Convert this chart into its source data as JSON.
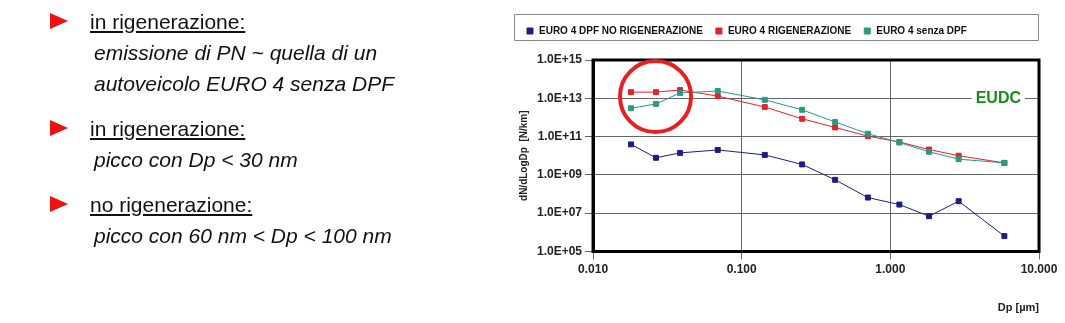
{
  "chart_data": {
    "type": "line",
    "xlabel": "Dp [µm]",
    "ylabel": "dN/dLogDp  [N/km]",
    "x": [
      0.018,
      0.0265,
      0.0385,
      0.069,
      0.143,
      0.255,
      0.425,
      0.706,
      1.15,
      1.82,
      2.88,
      5.85
    ],
    "series": [
      {
        "name": "EURO 4 DPF NO RIGENERAZIONE",
        "color": "#1c1c84",
        "values": [
          39000000000.0,
          7800000000.0,
          14000000000.0,
          20000000000.0,
          11000000000.0,
          3500000000.0,
          550000000.0,
          65000000.0,
          28000000.0,
          6900000.0,
          42000000.0,
          630000.0
        ]
      },
      {
        "name": "EURO 4 RIGENERAZIONE",
        "color": "#e8202a",
        "values": [
          21000000000000.0,
          21000000000000.0,
          27000000000000.0,
          13000000000000.0,
          3500000000000.0,
          850000000000.0,
          300000000000.0,
          105000000000.0,
          52000000000.0,
          21000000000.0,
          10000000000.0,
          4200000000.0
        ]
      },
      {
        "name": "EURO 4 senza DPF",
        "color": "#2a9a80",
        "values": [
          3000000000000.0,
          5100000000000.0,
          19000000000000.0,
          24000000000000.0,
          8300000000000.0,
          2500000000000.0,
          580000000000.0,
          140000000000.0,
          49000000000.0,
          16000000000.0,
          6600000000.0,
          4200000000.0
        ]
      }
    ],
    "xlim": [
      0.01,
      10
    ],
    "xticks": [
      {
        "value": 0.01,
        "label": "0.010"
      },
      {
        "value": 0.1,
        "label": "0.100"
      },
      {
        "value": 1,
        "label": "1.000"
      },
      {
        "value": 10,
        "label": "10.000"
      }
    ],
    "ylim": [
      100000.0,
      1000000000000000.0
    ],
    "yticks": [
      {
        "value": 100000.0,
        "label": "1.0E+05"
      },
      {
        "value": 10000000.0,
        "label": "1.0E+07"
      },
      {
        "value": 1000000000.0,
        "label": "1.0E+09"
      },
      {
        "value": 100000000000.0,
        "label": "1.0E+11"
      },
      {
        "value": 10000000000000.0,
        "label": "1.0E+13"
      },
      {
        "value": 1000000000000000.0,
        "label": "1.0E+15"
      }
    ],
    "log": "xy",
    "grid": true,
    "legend": "top",
    "marker": "square",
    "line_style": "solid",
    "annotations": [
      "in rigenerazione:",
      "emissione di PN ~ quella di un autoveicolo EURO 4 senza DPF",
      "in rigenerazione:",
      "picco con Dp < 30 nm",
      "no rigenerazione:",
      "picco con 60 nm < Dp < 100 nm",
      "EUDC"
    ]
  }
}
